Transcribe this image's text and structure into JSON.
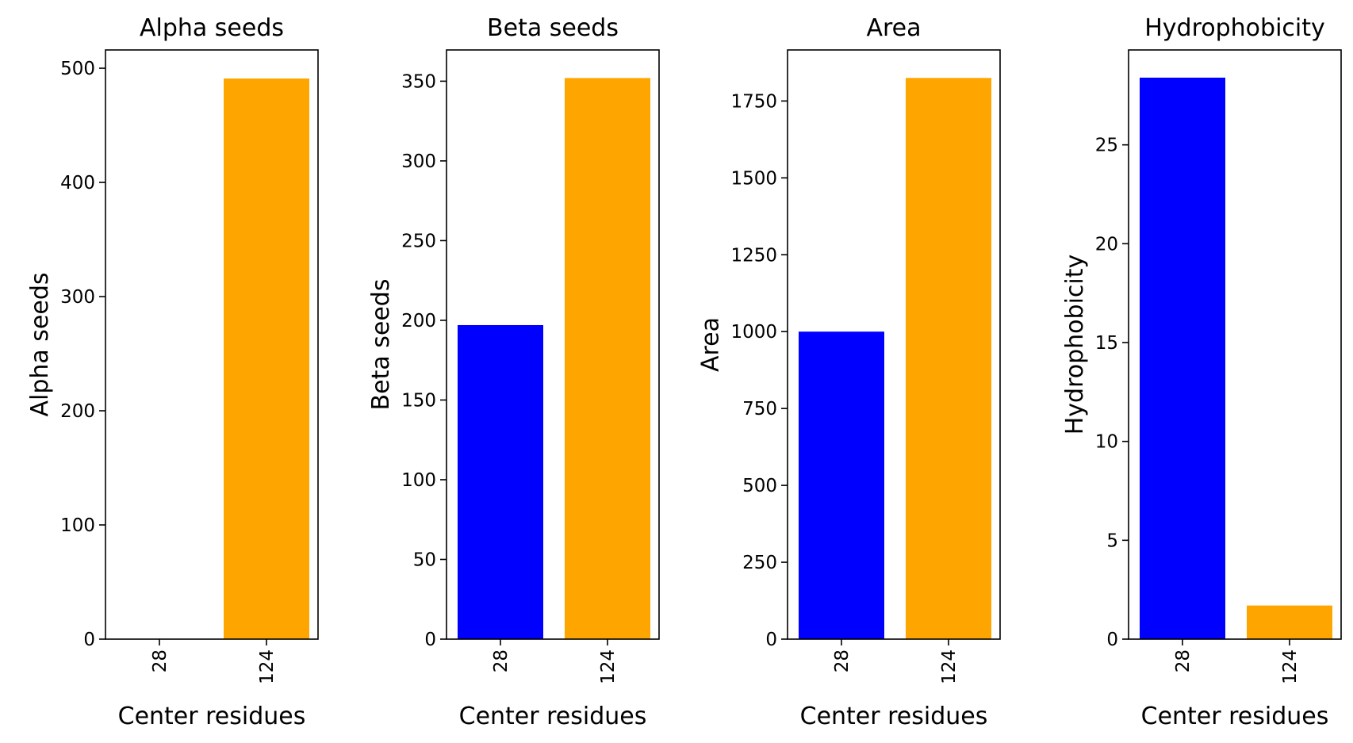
{
  "chart_data": [
    {
      "type": "bar",
      "title": "Alpha seeds",
      "xlabel": "Center residues",
      "ylabel": "Alpha seeds",
      "categories": [
        "28",
        "124"
      ],
      "values": [
        0,
        491
      ],
      "colors": [
        "#0000ff",
        "#ffa500"
      ],
      "ylim": [
        0,
        516
      ],
      "yticks": [
        0,
        100,
        200,
        300,
        400,
        500
      ]
    },
    {
      "type": "bar",
      "title": "Beta seeds",
      "xlabel": "Center residues",
      "ylabel": "Beta seeds",
      "categories": [
        "28",
        "124"
      ],
      "values": [
        197,
        352
      ],
      "colors": [
        "#0000ff",
        "#ffa500"
      ],
      "ylim": [
        0,
        369.6
      ],
      "yticks": [
        0,
        50,
        100,
        150,
        200,
        250,
        300,
        350
      ]
    },
    {
      "type": "bar",
      "title": "Area",
      "xlabel": "Center residues",
      "ylabel": "Area",
      "categories": [
        "28",
        "124"
      ],
      "values": [
        1000,
        1825
      ],
      "colors": [
        "#0000ff",
        "#ffa500"
      ],
      "ylim": [
        0,
        1916
      ],
      "yticks": [
        0,
        250,
        500,
        750,
        1000,
        1250,
        1500,
        1750
      ]
    },
    {
      "type": "bar",
      "title": "Hydrophobicity",
      "xlabel": "Center residues",
      "ylabel": "Hydrophobicity",
      "categories": [
        "28",
        "124"
      ],
      "values": [
        28.4,
        1.7
      ],
      "colors": [
        "#0000ff",
        "#ffa500"
      ],
      "ylim": [
        0,
        29.8
      ],
      "yticks": [
        0,
        5,
        10,
        15,
        20,
        25
      ]
    }
  ]
}
